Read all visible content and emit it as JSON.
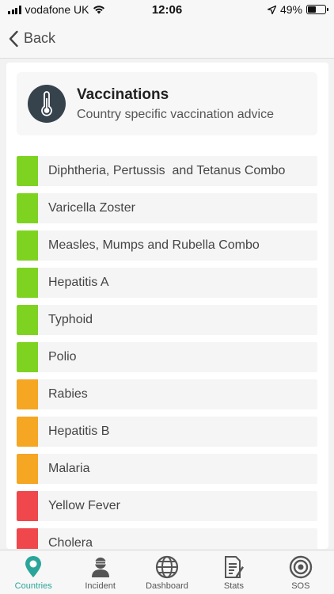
{
  "status_bar": {
    "carrier": "vodafone UK",
    "time": "12:06",
    "battery_percent": "49%",
    "battery_level": 0.49
  },
  "nav": {
    "back_label": "Back"
  },
  "header": {
    "title": "Vaccinations",
    "subtitle": "Country specific vaccination advice",
    "icon": "thermometer-icon"
  },
  "colors": {
    "green": "#7ed321",
    "orange": "#f5a623",
    "red": "#f0474c",
    "accent": "#2aa59a",
    "icon_bg": "#36424c"
  },
  "vaccinations": [
    {
      "label": "Diphtheria, Pertussis  and Tetanus Combo",
      "status": "green"
    },
    {
      "label": "Varicella Zoster",
      "status": "green"
    },
    {
      "label": "Measles, Mumps and Rubella Combo",
      "status": "green"
    },
    {
      "label": "Hepatitis A",
      "status": "green"
    },
    {
      "label": "Typhoid",
      "status": "green"
    },
    {
      "label": "Polio",
      "status": "green"
    },
    {
      "label": "Rabies",
      "status": "orange"
    },
    {
      "label": "Hepatitis B",
      "status": "orange"
    },
    {
      "label": "Malaria",
      "status": "orange"
    },
    {
      "label": "Yellow Fever",
      "status": "red"
    },
    {
      "label": "Cholera",
      "status": "red"
    }
  ],
  "tabs": [
    {
      "label": "Countries",
      "icon": "location-pin-icon",
      "active": true
    },
    {
      "label": "Incident",
      "icon": "incident-person-icon",
      "active": false
    },
    {
      "label": "Dashboard",
      "icon": "globe-icon",
      "active": false
    },
    {
      "label": "Stats",
      "icon": "stats-document-icon",
      "active": false
    },
    {
      "label": "SOS",
      "icon": "sos-target-icon",
      "active": false
    }
  ]
}
